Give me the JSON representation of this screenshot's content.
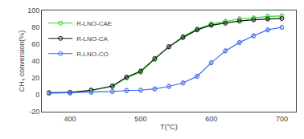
{
  "chart_data": {
    "type": "line",
    "xlabel": "T(°C)",
    "ylabel": "CH₄ conversion(%)",
    "xlim": [
      360,
      720
    ],
    "ylim": [
      -20,
      100
    ],
    "xticks": [
      400,
      500,
      600,
      700
    ],
    "yticks": [
      -20,
      0,
      20,
      40,
      60,
      80,
      100
    ],
    "grid": false,
    "legend": "upper left",
    "marker": "circle-open",
    "line_style": "solid",
    "x": [
      370,
      400,
      430,
      460,
      480,
      500,
      520,
      540,
      560,
      580,
      600,
      620,
      640,
      660,
      680,
      700
    ],
    "series": [
      {
        "name": "R-LNO-CAE",
        "color": "#22dd22",
        "values": [
          2.0,
          2.5,
          5.0,
          10.0,
          20.0,
          27.0,
          42.0,
          57.0,
          69.0,
          78.0,
          84.0,
          87.0,
          90.0,
          91.0,
          93.0,
          93.5
        ],
        "errors": [
          2.5,
          2.5,
          2.5,
          2.5,
          2.5,
          2.5,
          2.5,
          2.5,
          2.5,
          2.5,
          2.5,
          2.5,
          2.5,
          2.5,
          2.5,
          2.5
        ]
      },
      {
        "name": "R-LNO-CA",
        "color": "#111111",
        "values": [
          2.5,
          3.0,
          5.5,
          10.5,
          21.0,
          28.0,
          43.0,
          57.0,
          68.0,
          77.0,
          82.5,
          85.0,
          87.5,
          89.0,
          90.0,
          90.5
        ],
        "errors": [
          2.5,
          2.5,
          2.5,
          2.5,
          2.5,
          2.5,
          2.5,
          2.5,
          2.5,
          2.5,
          2.5,
          2.5,
          2.5,
          2.5,
          2.5,
          2.5
        ]
      },
      {
        "name": "R-LNO-CO",
        "color": "#3366ff",
        "values": [
          2.0,
          2.5,
          3.0,
          4.0,
          5.0,
          5.5,
          7.0,
          10.0,
          14.0,
          22.0,
          38.0,
          52.0,
          62.0,
          70.0,
          77.0,
          80.0
        ],
        "errors": [
          2.5,
          2.5,
          2.5,
          2.5,
          2.5,
          2.5,
          2.5,
          2.5,
          2.5,
          2.5,
          2.5,
          2.5,
          2.5,
          2.5,
          2.5,
          2.5
        ]
      }
    ]
  }
}
